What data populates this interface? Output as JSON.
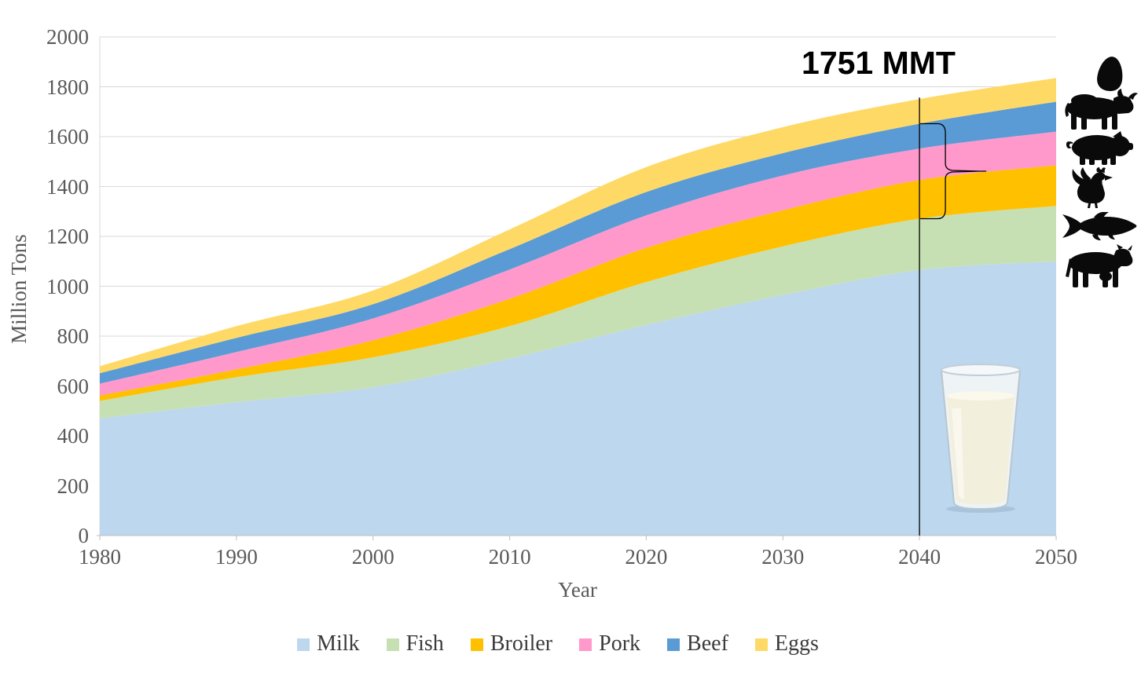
{
  "axes": {
    "y_label": "Million Tons",
    "x_label": "Year",
    "y_ticks": [
      "0",
      "200",
      "400",
      "600",
      "800",
      "1000",
      "1200",
      "1400",
      "1600",
      "1800",
      "2000"
    ],
    "x_ticks": [
      "1980",
      "1990",
      "2000",
      "2010",
      "2020",
      "2030",
      "2040",
      "2050"
    ]
  },
  "legend": {
    "items": [
      {
        "label": "Milk",
        "color": "#BDD7EE"
      },
      {
        "label": "Fish",
        "color": "#C6E0B4"
      },
      {
        "label": "Broiler",
        "color": "#FFC000"
      },
      {
        "label": "Pork",
        "color": "#FF99CC"
      },
      {
        "label": "Beef",
        "color": "#5B9BD5"
      },
      {
        "label": "Eggs",
        "color": "#FFD966"
      }
    ]
  },
  "icons": {
    "names": [
      "egg-icon",
      "bull-icon",
      "pig-icon",
      "rooster-icon",
      "fish-icon",
      "cow-icon",
      "milk-glass-image"
    ]
  },
  "chart_data": {
    "type": "area",
    "stacked": true,
    "title": "",
    "xlabel": "Year",
    "ylabel": "Million Tons",
    "x": [
      1980,
      1990,
      2000,
      2010,
      2020,
      2030,
      2040,
      2050
    ],
    "xlim": [
      1980,
      2050
    ],
    "ylim": [
      0,
      2000
    ],
    "grid": true,
    "legend_position": "bottom",
    "series": [
      {
        "name": "Milk",
        "color": "#BDD7EE",
        "values": [
          470,
          535,
          595,
          710,
          845,
          965,
          1065,
          1100
        ]
      },
      {
        "name": "Fish",
        "color": "#C6E0B4",
        "values": [
          70,
          100,
          120,
          130,
          172,
          195,
          206,
          222
        ]
      },
      {
        "name": "Broiler",
        "color": "#FFC000",
        "values": [
          22,
          32,
          68,
          110,
          137,
          145,
          155,
          163
        ]
      },
      {
        "name": "Pork",
        "color": "#FF99CC",
        "values": [
          47,
          69,
          88,
          117,
          130,
          139,
          126,
          135
        ]
      },
      {
        "name": "Beef",
        "color": "#5B9BD5",
        "values": [
          42,
          57,
          57,
          82,
          94,
          90,
          100,
          120
        ]
      },
      {
        "name": "Eggs",
        "color": "#FFD966",
        "values": [
          28,
          47,
          55,
          79,
          100,
          104,
          99,
          95
        ]
      }
    ],
    "annotation": {
      "text": "1751 MMT",
      "year": 2040,
      "total_value": 1751,
      "brace_covers": [
        "Broiler",
        "Pork",
        "Beef"
      ]
    }
  },
  "colors": {
    "grid": "#D9D9D9",
    "axis": "#BFBFBF",
    "tick_text": "#595959",
    "legend_text": "#3B3B3B",
    "annotation_text": "#000000",
    "annotation_line": "#000000"
  }
}
